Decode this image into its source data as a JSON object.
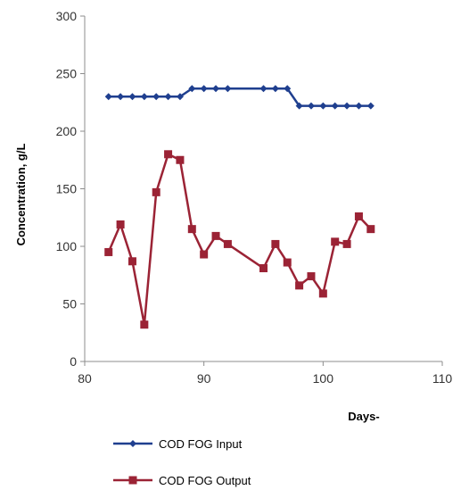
{
  "chart_data": {
    "type": "line",
    "xlabel": "Days-",
    "ylabel": "Concentration, g/L",
    "xlim": [
      80,
      110
    ],
    "ylim": [
      0,
      300
    ],
    "x_ticks": [
      80,
      90,
      100,
      110
    ],
    "y_ticks": [
      0,
      50,
      100,
      150,
      200,
      250,
      300
    ],
    "grid": false,
    "legend_position": "bottom",
    "series": [
      {
        "name": "COD FOG Input",
        "color": "#1f3f8f",
        "marker": "diamond",
        "x": [
          82,
          83,
          84,
          85,
          86,
          87,
          88,
          89,
          90,
          91,
          92,
          95,
          96,
          97,
          98,
          99,
          100,
          101,
          102,
          103,
          104
        ],
        "y": [
          230,
          230,
          230,
          230,
          230,
          230,
          230,
          237,
          237,
          237,
          237,
          237,
          237,
          237,
          222,
          222,
          222,
          222,
          222,
          222,
          222
        ]
      },
      {
        "name": "COD FOG Output",
        "color": "#9b2335",
        "marker": "square",
        "x": [
          82,
          83,
          84,
          85,
          86,
          87,
          88,
          89,
          90,
          91,
          92,
          95,
          96,
          97,
          98,
          99,
          100,
          101,
          102,
          103,
          104
        ],
        "y": [
          95,
          119,
          87,
          32,
          147,
          180,
          175,
          115,
          93,
          109,
          102,
          81,
          102,
          86,
          66,
          74,
          59,
          104,
          102,
          126,
          115
        ]
      }
    ]
  }
}
